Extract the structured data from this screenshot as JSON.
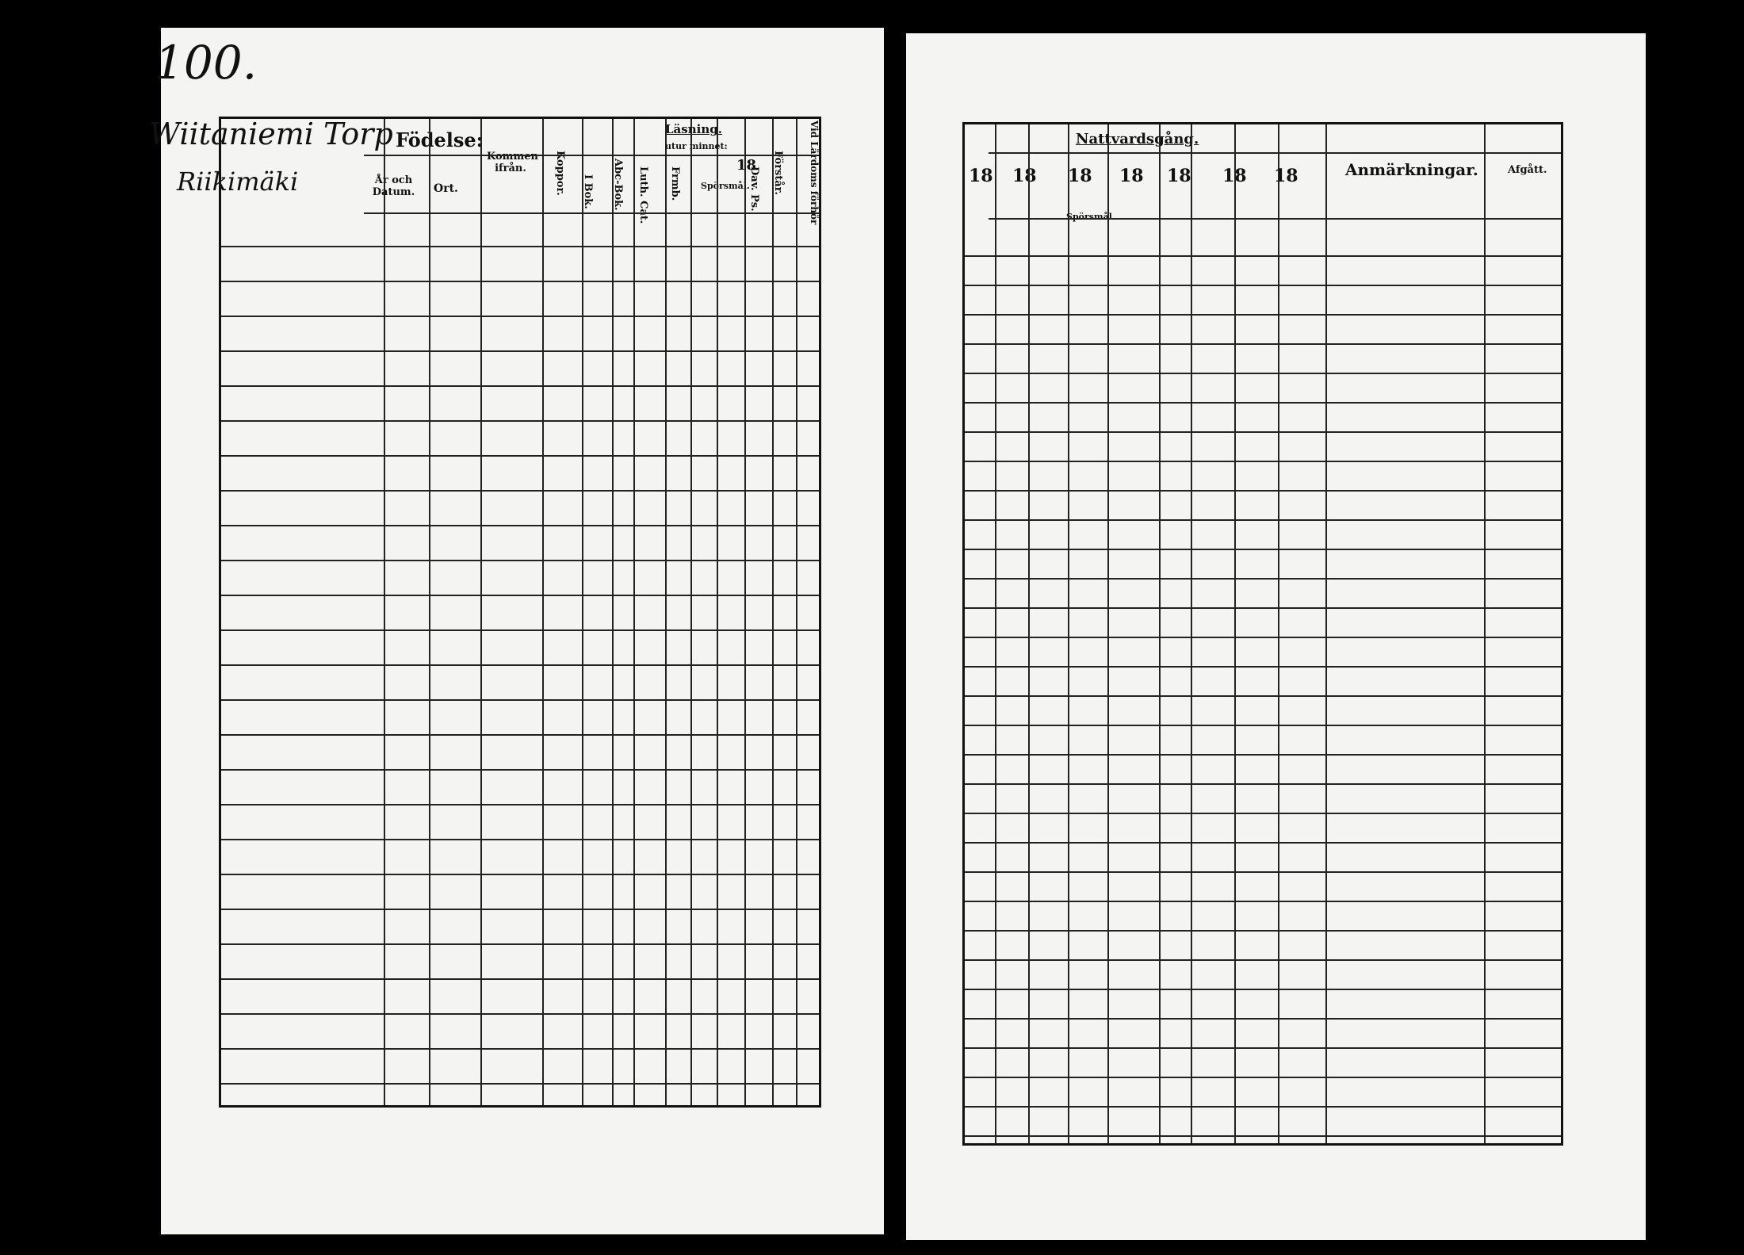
{
  "left_page": {
    "page_number": "100.",
    "place_name": "Wiitaniemi Torp",
    "place_name_2": "Riikimäki",
    "headers": {
      "fodelse": "Födelse:",
      "ar_och_datum": "År och Datum.",
      "ort": "Ort.",
      "kommen_fran": "Kommen ifrån.",
      "koppor": "Koppor.",
      "i_bok": "I Bok.",
      "lasning": "Läsning.",
      "utur_minnet": "utur minnet:",
      "abc_bok": "Abc-Bok.",
      "luth_cat": "Luth. Cat.",
      "bibl_hist": "Frmb.",
      "sporsmal": "Spörsmål.",
      "dav_ps": "Dav. Ps.",
      "forstar": "Förstår.",
      "lardoms_forhor": "Vid Lärdoms förhör",
      "year": "18"
    }
  },
  "right_page": {
    "headers": {
      "nattvardsgang": "Nattvardsgång.",
      "years": [
        "18",
        "18",
        "18",
        "18",
        "18",
        "18",
        "18"
      ],
      "sporsmal": "Spörsmål",
      "anmarkningar": "Anmärkningar.",
      "afgatt": "Afgått."
    }
  }
}
